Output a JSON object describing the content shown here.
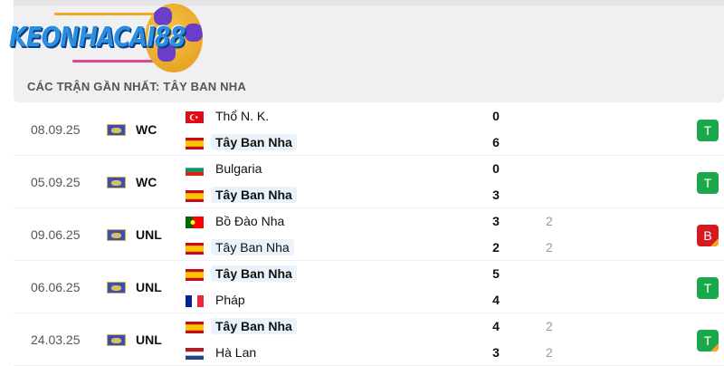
{
  "logo": {
    "text": "KEONHACAI88"
  },
  "header": {
    "title": "CÁC TRẬN GẦN NHẤT: TÂY BAN NHA"
  },
  "colors": {
    "win": "#1ba84a",
    "loss": "#d71920",
    "penalty_corner": "#f5a623",
    "highlight": "#eaf3fb"
  },
  "matches": [
    {
      "date": "08.09.25",
      "competition": "WC",
      "home": {
        "name": "Thổ N. K.",
        "flag": "turkey",
        "score": "0",
        "pen": ""
      },
      "away": {
        "name": "Tây Ban Nha",
        "flag": "spain",
        "score": "6",
        "pen": ""
      },
      "result": "T",
      "penalties": false
    },
    {
      "date": "05.09.25",
      "competition": "WC",
      "home": {
        "name": "Bulgaria",
        "flag": "bulgaria",
        "score": "0",
        "pen": ""
      },
      "away": {
        "name": "Tây Ban Nha",
        "flag": "spain",
        "score": "3",
        "pen": ""
      },
      "result": "T",
      "penalties": false
    },
    {
      "date": "09.06.25",
      "competition": "UNL",
      "home": {
        "name": "Bồ Đào Nha",
        "flag": "portugal",
        "score": "3",
        "pen": "2"
      },
      "away": {
        "name": "Tây Ban Nha",
        "flag": "spain",
        "score": "2",
        "pen": "2"
      },
      "result": "B",
      "penalties": true
    },
    {
      "date": "06.06.25",
      "competition": "UNL",
      "home": {
        "name": "Tây Ban Nha",
        "flag": "spain",
        "score": "5",
        "pen": ""
      },
      "away": {
        "name": "Pháp",
        "flag": "france",
        "score": "4",
        "pen": ""
      },
      "result": "T",
      "penalties": false
    },
    {
      "date": "24.03.25",
      "competition": "UNL",
      "home": {
        "name": "Tây Ban Nha",
        "flag": "spain",
        "score": "4",
        "pen": "2"
      },
      "away": {
        "name": "Hà Lan",
        "flag": "netherlands",
        "score": "3",
        "pen": "2"
      },
      "result": "T",
      "penalties": true
    }
  ]
}
